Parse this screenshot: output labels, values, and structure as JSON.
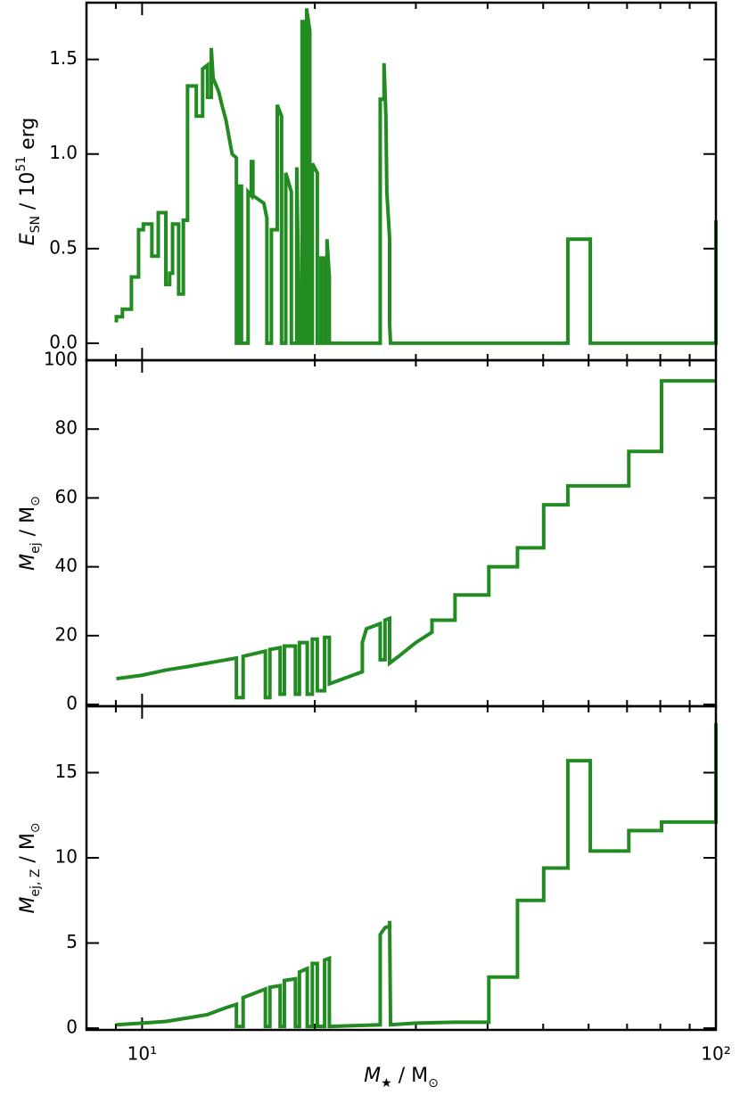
{
  "chart_data": [
    {
      "type": "line",
      "xlog": true,
      "xlim": [
        8,
        100
      ],
      "xticks": [
        10,
        100
      ],
      "xminorticks": [
        9,
        20,
        30,
        40,
        50,
        60,
        70,
        80,
        90
      ],
      "ylim": [
        -0.09,
        1.8
      ],
      "yticks": [
        {
          "value": 0,
          "label": "0.0"
        },
        {
          "value": 0.5,
          "label": "0.5"
        },
        {
          "value": 1,
          "label": "1.0"
        },
        {
          "value": 1.5,
          "label": "1.5"
        }
      ],
      "ylabel": [
        {
          "text": "E",
          "kind": "i"
        },
        {
          "text": "SN",
          "kind": "sub"
        },
        {
          "text": " / 10",
          "kind": "n"
        },
        {
          "text": "51",
          "kind": "sup"
        },
        {
          "text": " erg",
          "kind": "n"
        }
      ],
      "x": [
        9.02,
        9.02,
        9.24,
        9.24,
        9.58,
        9.58,
        9.86,
        9.86,
        10.05,
        10.05,
        10.4,
        10.4,
        10.67,
        10.67,
        11.0,
        11.0,
        11.17,
        11.17,
        11.3,
        11.3,
        11.58,
        11.58,
        11.8,
        11.8,
        12.0,
        12.0,
        12.43,
        12.43,
        12.75,
        12.75,
        13.0,
        13.0,
        13.2,
        13.2,
        13.3,
        13.6,
        13.8,
        14.0,
        14.35,
        14.6,
        14.6,
        14.75,
        14.75,
        14.9,
        14.9,
        15.3,
        15.3,
        15.5,
        15.5,
        15.6,
        15.6,
        16.3,
        16.5,
        16.5,
        16.8,
        16.8,
        17.2,
        17.2,
        17.5,
        17.5,
        17.8,
        17.8,
        18.2,
        18.2,
        18.6,
        18.6,
        18.8,
        19.0,
        19.0,
        19.2,
        19.2,
        19.35,
        19.35,
        19.6,
        19.6,
        19.8,
        19.8,
        20.2,
        20.2,
        20.5,
        20.5,
        20.8,
        20.8,
        21.0,
        21.0,
        21.2,
        21.2,
        26.0,
        26.0,
        26.4,
        26.4,
        26.6,
        26.7,
        27.0,
        27.0,
        27.1,
        55.2,
        55.2,
        60.4,
        60.4,
        100,
        100
      ],
      "series": [
        {
          "color": "#228b22",
          "values": [
            0.11,
            0.14,
            0.14,
            0.18,
            0.18,
            0.35,
            0.35,
            0.6,
            0.6,
            0.63,
            0.63,
            0.46,
            0.46,
            0.69,
            0.69,
            0.31,
            0.31,
            0.37,
            0.37,
            0.63,
            0.63,
            0.26,
            0.26,
            0.65,
            0.65,
            1.36,
            1.36,
            1.2,
            1.2,
            1.45,
            1.47,
            1.3,
            1.3,
            1.56,
            1.4,
            1.33,
            1.25,
            1.18,
            1.0,
            0.98,
            0,
            0,
            0.83,
            0.83,
            0,
            0,
            0.8,
            0.78,
            0.96,
            0.96,
            0.78,
            0.74,
            0.66,
            0,
            0,
            0.6,
            0.6,
            1.26,
            1.2,
            0,
            0,
            0.9,
            0.8,
            0,
            0,
            0.93,
            0,
            0,
            1.7,
            1.7,
            0,
            0,
            1.77,
            1.65,
            0,
            0,
            0.95,
            0.9,
            0,
            0,
            0.45,
            0.45,
            0,
            0,
            0.55,
            0.35,
            0,
            0,
            1.29,
            1.29,
            1.48,
            1.2,
            0.8,
            0.55,
            0.1,
            0,
            0,
            0.55,
            0.55,
            0,
            0,
            0.65
          ]
        }
      ]
    },
    {
      "type": "line",
      "xlog": true,
      "xlim": [
        8,
        100
      ],
      "xticks": [
        10,
        100
      ],
      "xminorticks": [
        9,
        20,
        30,
        40,
        50,
        60,
        70,
        80,
        90
      ],
      "ylim": [
        -0.5,
        100
      ],
      "yticks": [
        0,
        20,
        40,
        60,
        80,
        100
      ],
      "ylabel": [
        {
          "text": "M",
          "kind": "i"
        },
        {
          "text": "ej",
          "kind": "sub"
        },
        {
          "text": " / M",
          "kind": "n"
        },
        {
          "text": "⊙",
          "kind": "sub"
        }
      ],
      "x": [
        9.02,
        10,
        11,
        12,
        13.5,
        14.6,
        14.6,
        15,
        15,
        16.4,
        16.4,
        16.7,
        16.7,
        17.4,
        17.4,
        17.7,
        17.7,
        18.5,
        18.5,
        18.8,
        18.8,
        19.4,
        19.4,
        19.8,
        19.8,
        20.2,
        20.2,
        20.8,
        20.8,
        21.2,
        21.2,
        24.2,
        24.2,
        24.6,
        26,
        26,
        26.5,
        26.5,
        27,
        27,
        28,
        30,
        32,
        32,
        35.1,
        35.1,
        40.2,
        40.2,
        45.1,
        45.1,
        50.1,
        50.1,
        55.2,
        55.2,
        70.5,
        70.5,
        80.4,
        80.4,
        100
      ],
      "series": [
        {
          "color": "#228b22",
          "values": [
            7.5,
            8.5,
            10,
            11,
            12.5,
            13.5,
            2,
            2,
            14,
            15.5,
            2,
            2,
            16,
            16.5,
            3,
            3,
            17,
            17,
            3,
            3,
            18,
            18,
            3,
            3,
            19,
            19,
            4,
            4,
            19.5,
            19.5,
            6,
            9.5,
            18,
            22,
            23.5,
            13,
            13,
            24.5,
            25,
            12,
            14,
            18,
            21,
            24.5,
            24.5,
            31.8,
            31.8,
            40,
            40,
            45.5,
            45.5,
            58,
            58,
            63.5,
            63.5,
            73.5,
            73.5,
            94,
            94
          ]
        }
      ]
    },
    {
      "type": "line",
      "xlog": true,
      "xlim": [
        8,
        100
      ],
      "xticks": [
        {
          "value": 10,
          "label": "10¹"
        },
        {
          "value": 100,
          "label": "10²"
        }
      ],
      "xminorticks": [
        9,
        20,
        30,
        40,
        50,
        60,
        70,
        80,
        90
      ],
      "ylim": [
        -0.1,
        18.9
      ],
      "yticks": [
        0,
        5,
        10,
        15
      ],
      "ylabel": [
        {
          "text": "M",
          "kind": "i"
        },
        {
          "text": "ej, Z",
          "kind": "sub"
        },
        {
          "text": " / M",
          "kind": "n"
        },
        {
          "text": "⊙",
          "kind": "sub"
        }
      ],
      "xlabel": [
        {
          "text": "M",
          "kind": "i"
        },
        {
          "text": "★",
          "kind": "sub"
        },
        {
          "text": " / M",
          "kind": "n"
        },
        {
          "text": "⊙",
          "kind": "sub"
        }
      ],
      "x": [
        9.02,
        10,
        11,
        12,
        13,
        14,
        14.6,
        14.6,
        15,
        15,
        16.4,
        16.4,
        16.7,
        16.7,
        17.4,
        17.4,
        17.7,
        17.7,
        18.5,
        18.5,
        18.8,
        18.8,
        19.4,
        19.4,
        19.8,
        19.8,
        20.2,
        20.2,
        20.8,
        20.8,
        21.2,
        21.2,
        26,
        26,
        26.5,
        27,
        27,
        27.1,
        30,
        35.1,
        40.2,
        40.2,
        45.1,
        45.1,
        50.1,
        50.1,
        55.2,
        55.2,
        60.4,
        60.4,
        70.5,
        70.5,
        80.4,
        80.4,
        100,
        100
      ],
      "series": [
        {
          "color": "#228b22",
          "values": [
            0.2,
            0.3,
            0.4,
            0.6,
            0.8,
            1.2,
            1.4,
            0.1,
            0.1,
            1.8,
            2.3,
            0.1,
            0.1,
            2.4,
            2.5,
            0.1,
            0.1,
            2.8,
            2.9,
            0.1,
            0.1,
            3.3,
            3.5,
            0.1,
            0.1,
            3.8,
            3.8,
            0.1,
            0.1,
            4,
            4.1,
            0.1,
            0.2,
            5.5,
            5.9,
            6,
            6.3,
            0.2,
            0.3,
            0.35,
            0.35,
            3,
            3,
            7.5,
            7.5,
            9.4,
            9.4,
            15.7,
            15.7,
            10.4,
            10.4,
            11.6,
            11.6,
            12.1,
            12.1,
            17.9
          ]
        }
      ]
    }
  ]
}
